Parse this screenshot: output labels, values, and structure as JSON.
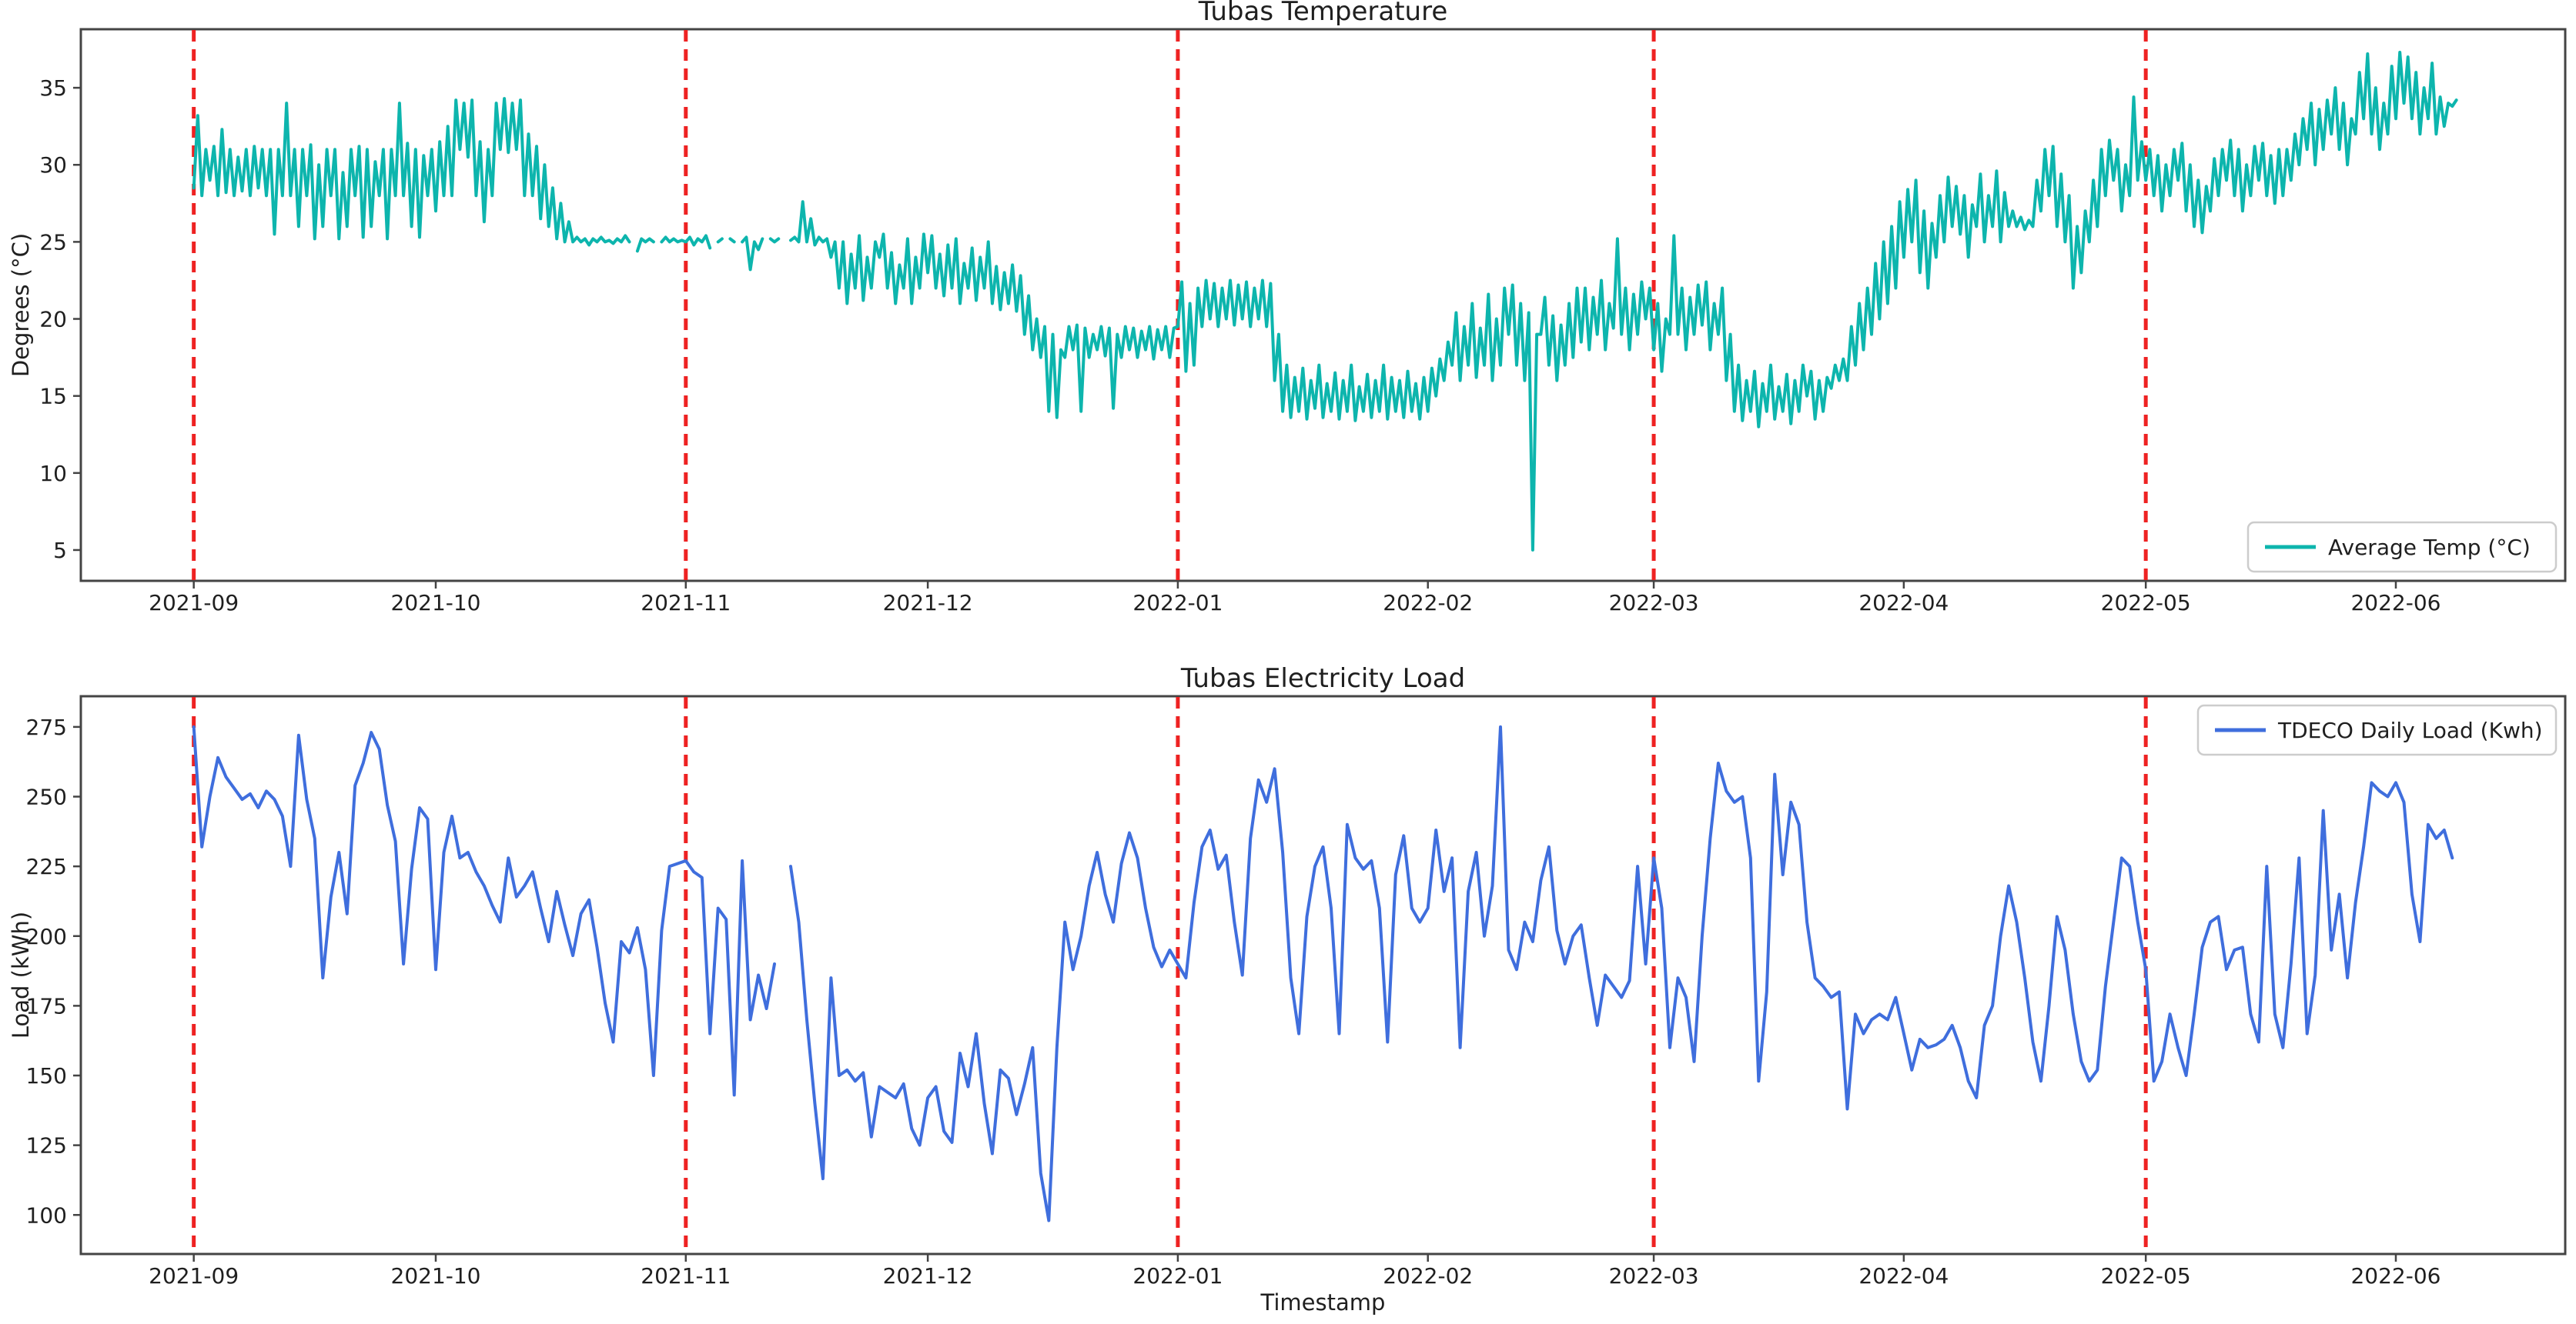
{
  "figure": {
    "background": "#ffffff",
    "spine_color": "#444444",
    "text_color": "#1f1f1f"
  },
  "chart_data": [
    {
      "type": "line",
      "title": "Tubas Temperature",
      "ylabel": "Degrees (°C)",
      "xlabel": "",
      "legend": {
        "label": "Average Temp (°C)",
        "position": "lower right"
      },
      "line_color": "#0db5ad",
      "vline_color": "#ee2222",
      "vline_style": "dashed",
      "vlines_days": [
        0,
        61,
        122,
        181,
        242
      ],
      "x_start_date": "2021-09-01",
      "samples_per_day": 2,
      "xlim_days": [
        -14,
        294
      ],
      "ylim": [
        3.0,
        38.8
      ],
      "grid": false,
      "x_ticks": [
        {
          "day": 0,
          "label": "2021-09"
        },
        {
          "day": 30,
          "label": "2021-10"
        },
        {
          "day": 61,
          "label": "2021-11"
        },
        {
          "day": 91,
          "label": "2021-12"
        },
        {
          "day": 122,
          "label": "2022-01"
        },
        {
          "day": 153,
          "label": "2022-02"
        },
        {
          "day": 181,
          "label": "2022-03"
        },
        {
          "day": 212,
          "label": "2022-04"
        },
        {
          "day": 242,
          "label": "2022-05"
        },
        {
          "day": 273,
          "label": "2022-06"
        }
      ],
      "y_ticks": [
        5,
        10,
        15,
        20,
        25,
        30,
        35
      ],
      "values": [
        28.5,
        33.2,
        28,
        31,
        29,
        31.2,
        28,
        32.3,
        28.2,
        31,
        28,
        30.5,
        28.3,
        31,
        28,
        31.2,
        28.5,
        31,
        28,
        31,
        25.5,
        31,
        28,
        34,
        28,
        31,
        26,
        31,
        28,
        31.3,
        25.2,
        30,
        26,
        31,
        28,
        31,
        25.2,
        29.5,
        26,
        31,
        28,
        31.2,
        25.3,
        31,
        26,
        30.2,
        28,
        31,
        25.2,
        31,
        28,
        34,
        28,
        31.4,
        26,
        31,
        25.3,
        30.6,
        28,
        31,
        27,
        31.5,
        28,
        32.5,
        28,
        34.2,
        31,
        34,
        30.5,
        34.2,
        28,
        31.5,
        26.3,
        31,
        28,
        34,
        31,
        34.3,
        30.8,
        34,
        31,
        34.2,
        28,
        32,
        28,
        31.2,
        26.5,
        30,
        26,
        28.5,
        25.2,
        27.5,
        25,
        26.3,
        25,
        25.3,
        25,
        25.2,
        24.8,
        25.2,
        25,
        25.3,
        25,
        25.1,
        24.9,
        25.2,
        25,
        25.4,
        25,
        null,
        24.4,
        25.2,
        25,
        25.2,
        25,
        null,
        25,
        25.3,
        25,
        25.2,
        25,
        25.1,
        25,
        25.3,
        24.8,
        25.2,
        25,
        25.4,
        24.6,
        null,
        25,
        25.2,
        null,
        25.2,
        25,
        null,
        25,
        25.3,
        23.2,
        25,
        24.5,
        25.2,
        null,
        25.2,
        25,
        25.2,
        null,
        null,
        25.1,
        25.3,
        25,
        27.6,
        25,
        26.5,
        24.8,
        25.3,
        25,
        25.2,
        24,
        25,
        22,
        25,
        21,
        24.2,
        22,
        25.4,
        21.2,
        24,
        22,
        25,
        24,
        25.5,
        22,
        24.3,
        21,
        23.5,
        22,
        25.2,
        21,
        24,
        22,
        25.5,
        23,
        25.4,
        22,
        24.2,
        21.5,
        24.8,
        22,
        25.2,
        21,
        23.6,
        22,
        24.6,
        21.2,
        24,
        22,
        25,
        21,
        23.4,
        20.6,
        23,
        21,
        23.5,
        20.5,
        22.8,
        19,
        21.5,
        18,
        20,
        17.5,
        19.5,
        14,
        19,
        13.6,
        18,
        17.5,
        19.5,
        18,
        19.6,
        14,
        19.4,
        17.5,
        19,
        18,
        19.5,
        17.6,
        19.4,
        14.2,
        19,
        17.5,
        19.5,
        18,
        19.4,
        17.5,
        19.2,
        18,
        19.5,
        17.4,
        19.3,
        18,
        19.5,
        17.5,
        19.4,
        19.5,
        22.4,
        16.6,
        21,
        17,
        22,
        19.5,
        22.5,
        20,
        22.3,
        19.5,
        22,
        20,
        22.5,
        19.6,
        22.2,
        20,
        22.4,
        19.5,
        22,
        20,
        22.5,
        19.5,
        22.3,
        16,
        19,
        14,
        17,
        13.6,
        16.2,
        14,
        16.8,
        13.5,
        16,
        14.2,
        17,
        13.6,
        15.8,
        14,
        16.5,
        13.5,
        16,
        14,
        17,
        13.4,
        15.6,
        14,
        16.4,
        13.6,
        16,
        14,
        17,
        13.5,
        16.2,
        14,
        16,
        13.6,
        16.6,
        14,
        15.8,
        13.5,
        16.2,
        14,
        16.8,
        15,
        17.4,
        16,
        18.5,
        17,
        20.4,
        16,
        19.5,
        17,
        21,
        16.2,
        19.4,
        17,
        21.6,
        16,
        20,
        17,
        22,
        19,
        22.2,
        17,
        21,
        16,
        20.4,
        5,
        19,
        19,
        21.4,
        17,
        20.2,
        16,
        19.6,
        17,
        21,
        17.5,
        22,
        18.5,
        22,
        18,
        21.4,
        19,
        22.5,
        18,
        21,
        19.4,
        25.2,
        19,
        22,
        18,
        21.6,
        19,
        22.4,
        20,
        22,
        18,
        21,
        16.6,
        20,
        19,
        25.4,
        19,
        22,
        18,
        21.4,
        19,
        22.2,
        19.6,
        22.4,
        18,
        21,
        19,
        22,
        16,
        19,
        14,
        17,
        13.4,
        16,
        14,
        16.6,
        13,
        15.8,
        14,
        17,
        13.5,
        15.6,
        14,
        16.4,
        13.2,
        16,
        14,
        17,
        15,
        16.6,
        13.5,
        16,
        14,
        16.2,
        15.5,
        17,
        16,
        17.4,
        16,
        19.5,
        17,
        21,
        18,
        22,
        19,
        23.6,
        20,
        25,
        21,
        26,
        22,
        27.6,
        24,
        28.4,
        25,
        29,
        23,
        27,
        22,
        26.2,
        24,
        28,
        25,
        29.2,
        26,
        28.6,
        25.5,
        28,
        24,
        27.4,
        26,
        29.4,
        25,
        28,
        26,
        29.6,
        25,
        28.2,
        26,
        27,
        26,
        26.6,
        25.8,
        26.4,
        26,
        29,
        27,
        31,
        28,
        31.2,
        26,
        29.4,
        25,
        28,
        22,
        26,
        23,
        27,
        25,
        29,
        26,
        31,
        28,
        31.6,
        29,
        31,
        27,
        30,
        28,
        34.4,
        29,
        31.5,
        29,
        31,
        28,
        30.6,
        27,
        30,
        28,
        31,
        29,
        31.4,
        27,
        30,
        26,
        29,
        25.6,
        28.6,
        27,
        30.4,
        28,
        31,
        29,
        31.6,
        28,
        31,
        27,
        30,
        28,
        31.2,
        29,
        31.4,
        28,
        30.6,
        27.5,
        31,
        28,
        31,
        29,
        32,
        30,
        33,
        31,
        34,
        30,
        33.6,
        31,
        34.2,
        32,
        35,
        31,
        34,
        30,
        33,
        32,
        36,
        33,
        37.2,
        32,
        35,
        31,
        34,
        32,
        36.4,
        33,
        37.3,
        34,
        37,
        33,
        36,
        32,
        35,
        33,
        36.6,
        32,
        34.4,
        32.5,
        34,
        33.8,
        34.2
      ]
    },
    {
      "type": "line",
      "title": "Tubas Electricity Load",
      "ylabel": "Load (kWh)",
      "xlabel": "Timestamp",
      "legend": {
        "label": "TDECO Daily Load (Kwh)",
        "position": "upper right"
      },
      "line_color": "#3f6edd",
      "vline_color": "#ee2222",
      "vline_style": "dashed",
      "vlines_days": [
        0,
        61,
        122,
        181,
        242
      ],
      "x_start_date": "2021-09-01",
      "samples_per_day": 1,
      "xlim_days": [
        -14,
        294
      ],
      "ylim": [
        86,
        286
      ],
      "grid": false,
      "x_ticks": [
        {
          "day": 0,
          "label": "2021-09"
        },
        {
          "day": 30,
          "label": "2021-10"
        },
        {
          "day": 61,
          "label": "2021-11"
        },
        {
          "day": 91,
          "label": "2021-12"
        },
        {
          "day": 122,
          "label": "2022-01"
        },
        {
          "day": 153,
          "label": "2022-02"
        },
        {
          "day": 181,
          "label": "2022-03"
        },
        {
          "day": 212,
          "label": "2022-04"
        },
        {
          "day": 242,
          "label": "2022-05"
        },
        {
          "day": 273,
          "label": "2022-06"
        }
      ],
      "y_ticks": [
        100,
        125,
        150,
        175,
        200,
        225,
        250,
        275
      ],
      "values": [
        275,
        232,
        250,
        264,
        257,
        253,
        249,
        251,
        246,
        252,
        249,
        243,
        225,
        272,
        249,
        235,
        185,
        214,
        230,
        208,
        254,
        262,
        273,
        267,
        247,
        234,
        190,
        224,
        246,
        242,
        188,
        230,
        243,
        228,
        230,
        223,
        218,
        211,
        205,
        228,
        214,
        218,
        223,
        210,
        198,
        216,
        204,
        193,
        208,
        213,
        196,
        176,
        162,
        198,
        194,
        203,
        188,
        150,
        202,
        225,
        226,
        227,
        223,
        221,
        165,
        210,
        206,
        143,
        227,
        170,
        186,
        174,
        190,
        null,
        225,
        205,
        170,
        140,
        113,
        185,
        150,
        152,
        148,
        151,
        128,
        146,
        144,
        142,
        147,
        131,
        125,
        142,
        146,
        130,
        126,
        158,
        146,
        165,
        140,
        122,
        152,
        149,
        136,
        147,
        160,
        115,
        98,
        160,
        205,
        188,
        200,
        218,
        230,
        215,
        205,
        226,
        237,
        228,
        210,
        196,
        189,
        195,
        190,
        185,
        212,
        232,
        238,
        224,
        229,
        205,
        186,
        235,
        256,
        248,
        260,
        230,
        185,
        165,
        207,
        225,
        232,
        210,
        165,
        240,
        228,
        224,
        227,
        210,
        162,
        222,
        236,
        210,
        205,
        210,
        238,
        216,
        228,
        160,
        216,
        230,
        200,
        218,
        275,
        195,
        188,
        205,
        198,
        220,
        232,
        202,
        190,
        200,
        204,
        185,
        168,
        186,
        182,
        178,
        184,
        225,
        190,
        228,
        210,
        160,
        185,
        178,
        155,
        200,
        235,
        262,
        252,
        248,
        250,
        228,
        148,
        180,
        258,
        222,
        248,
        240,
        205,
        185,
        182,
        178,
        180,
        138,
        172,
        165,
        170,
        172,
        170,
        178,
        165,
        152,
        163,
        160,
        161,
        163,
        168,
        160,
        148,
        142,
        168,
        175,
        200,
        218,
        205,
        185,
        162,
        148,
        175,
        207,
        195,
        172,
        155,
        148,
        152,
        182,
        205,
        228,
        225,
        205,
        188,
        148,
        155,
        172,
        160,
        150,
        172,
        196,
        205,
        207,
        188,
        195,
        196,
        172,
        162,
        225,
        172,
        160,
        190,
        228,
        165,
        186,
        245,
        195,
        215,
        185,
        212,
        232,
        255,
        252,
        250,
        255,
        248,
        215,
        198,
        240,
        235,
        238,
        228
      ]
    }
  ]
}
